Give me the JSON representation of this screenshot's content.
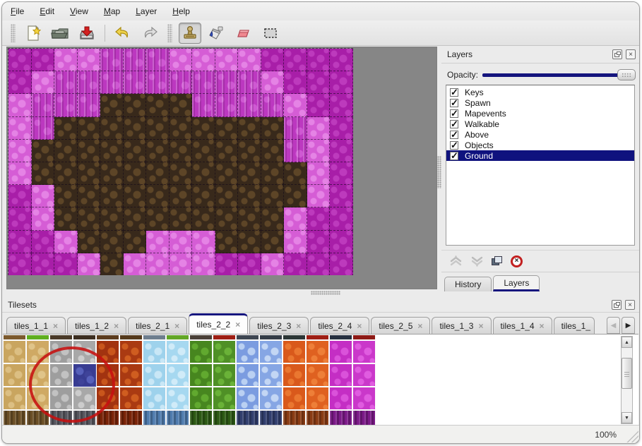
{
  "menu": {
    "items": [
      "File",
      "Edit",
      "View",
      "Map",
      "Layer",
      "Help"
    ]
  },
  "toolbar": {
    "buttons": [
      {
        "name": "new-map",
        "icon": "new-file-icon"
      },
      {
        "name": "open-map",
        "icon": "open-folder-icon"
      },
      {
        "name": "save-map",
        "icon": "save-icon"
      },
      {
        "name": "undo",
        "icon": "undo-arrow-icon"
      },
      {
        "name": "redo",
        "icon": "redo-arrow-icon"
      },
      {
        "name": "stamp-tool",
        "icon": "stamp-icon",
        "selected": true
      },
      {
        "name": "fill-tool",
        "icon": "paint-bucket-icon"
      },
      {
        "name": "eraser-tool",
        "icon": "eraser-icon"
      },
      {
        "name": "rect-select-tool",
        "icon": "marquee-icon"
      }
    ]
  },
  "map": {
    "legend": {
      "D": "dark-magenta",
      "P": "light-pink",
      "W": "pink-wall",
      "B": "brown-ground"
    },
    "tile_colors": {
      "D": {
        "base": "#a81ea8",
        "spot": "#bd3abd"
      },
      "P": {
        "base": "#d55dd5",
        "spot": "#e583e5"
      },
      "W": {
        "base": "#bc38c0",
        "spot": "#cf58d3"
      },
      "B": {
        "base": "#38291b",
        "spot": "#5d4527"
      }
    },
    "grid": [
      "DDPPWWWPPPPDDDD",
      "DPWWWWWWWWWPDDD",
      "PWWWBBBBWWWWPDD",
      "PWBBBBBBBBBBWPD",
      "PBBBBBBBBBBBWPD",
      "PBBBBBBBBBBBBPD",
      "DPBBBBBBBBBBBPD",
      "DPBBBBBBBBBBPDD",
      "DDPBBBPPPBBBPDD",
      "DDDPBPPPPDDPDDD"
    ]
  },
  "layers_panel": {
    "title": "Layers",
    "opacity_label": "Opacity:",
    "layers": [
      {
        "name": "Keys",
        "checked": true
      },
      {
        "name": "Spawn",
        "checked": true
      },
      {
        "name": "Mapevents",
        "checked": true
      },
      {
        "name": "Walkable",
        "checked": true
      },
      {
        "name": "Above",
        "checked": true
      },
      {
        "name": "Objects",
        "checked": true
      },
      {
        "name": "Ground",
        "checked": true,
        "selected": true
      }
    ],
    "action_buttons": [
      "move-layer-up",
      "move-layer-down",
      "duplicate-layer",
      "delete-layer"
    ],
    "dock_tabs": [
      {
        "label": "History",
        "active": false
      },
      {
        "label": "Layers",
        "active": true
      }
    ]
  },
  "tilesets_panel": {
    "title": "Tilesets",
    "tabs": [
      {
        "label": "tiles_1_1",
        "active": false
      },
      {
        "label": "tiles_1_2",
        "active": false
      },
      {
        "label": "tiles_2_1",
        "active": false
      },
      {
        "label": "tiles_2_2",
        "active": true
      },
      {
        "label": "tiles_2_3",
        "active": false
      },
      {
        "label": "tiles_2_4",
        "active": false
      },
      {
        "label": "tiles_2_5",
        "active": false
      },
      {
        "label": "tiles_1_3",
        "active": false
      },
      {
        "label": "tiles_1_4",
        "active": false
      },
      {
        "label": "tiles_1_",
        "active": false,
        "truncated": true
      }
    ],
    "tileset_columns": [
      {
        "header": "#7c5a2e",
        "base": "#c9a55f",
        "spot": "#dcbf83",
        "dark": "#6b4f26"
      },
      {
        "header": "#5fae1f",
        "base": "#cfa964",
        "spot": "#e0c489",
        "dark": "#6b4f26"
      },
      {
        "header": "#4a3a28",
        "base": "#9e9e9e",
        "spot": "#c2c2c2",
        "dark": "#56565e"
      },
      {
        "header": "#3c2e20",
        "base": "#a8a8a8",
        "spot": "#cccccc",
        "dark": "#56565e"
      },
      {
        "header": "#5c3c1e",
        "base": "#a23310",
        "spot": "#c9561c",
        "dark": "#7a2408"
      },
      {
        "header": "#553a1c",
        "base": "#aa3a12",
        "spot": "#cf5d20",
        "dark": "#7a2408"
      },
      {
        "header": "#6e7e8e",
        "base": "#9ed2ec",
        "spot": "#c9e7f6",
        "dark": "#507cae"
      },
      {
        "header": "#62a626",
        "base": "#a6d8f0",
        "spot": "#d0ebf8",
        "dark": "#507cae"
      },
      {
        "header": "#4a4038",
        "base": "#47861f",
        "spot": "#61a92f",
        "dark": "#2d5a14"
      },
      {
        "header": "#9e1e14",
        "base": "#4f9026",
        "spot": "#6ab238",
        "dark": "#2d5a14"
      },
      {
        "header": "#3e4652",
        "base": "#7b9ce0",
        "spot": "#bad0f2",
        "dark": "#323f6e"
      },
      {
        "header": "#343c46",
        "base": "#86a6e4",
        "spot": "#c3d6f4",
        "dark": "#323f6e"
      },
      {
        "header": "#2c3636",
        "base": "#d9591b",
        "spot": "#ea7730",
        "dark": "#8a3c14"
      },
      {
        "header": "#9e1e14",
        "base": "#df6120",
        "spot": "#ee7f38",
        "dark": "#8a3c14"
      },
      {
        "header": "#263040",
        "base": "#c42ec4",
        "spot": "#da52da",
        "dark": "#7c1a88"
      },
      {
        "header": "#8e1a16",
        "base": "#ca38ca",
        "spot": "#e05ce0",
        "dark": "#7c1a88"
      }
    ],
    "selected_tile": {
      "column": 4,
      "row": 2
    },
    "annotation": "red-circle-highlight"
  },
  "status_bar": {
    "zoom_level": "100%"
  }
}
